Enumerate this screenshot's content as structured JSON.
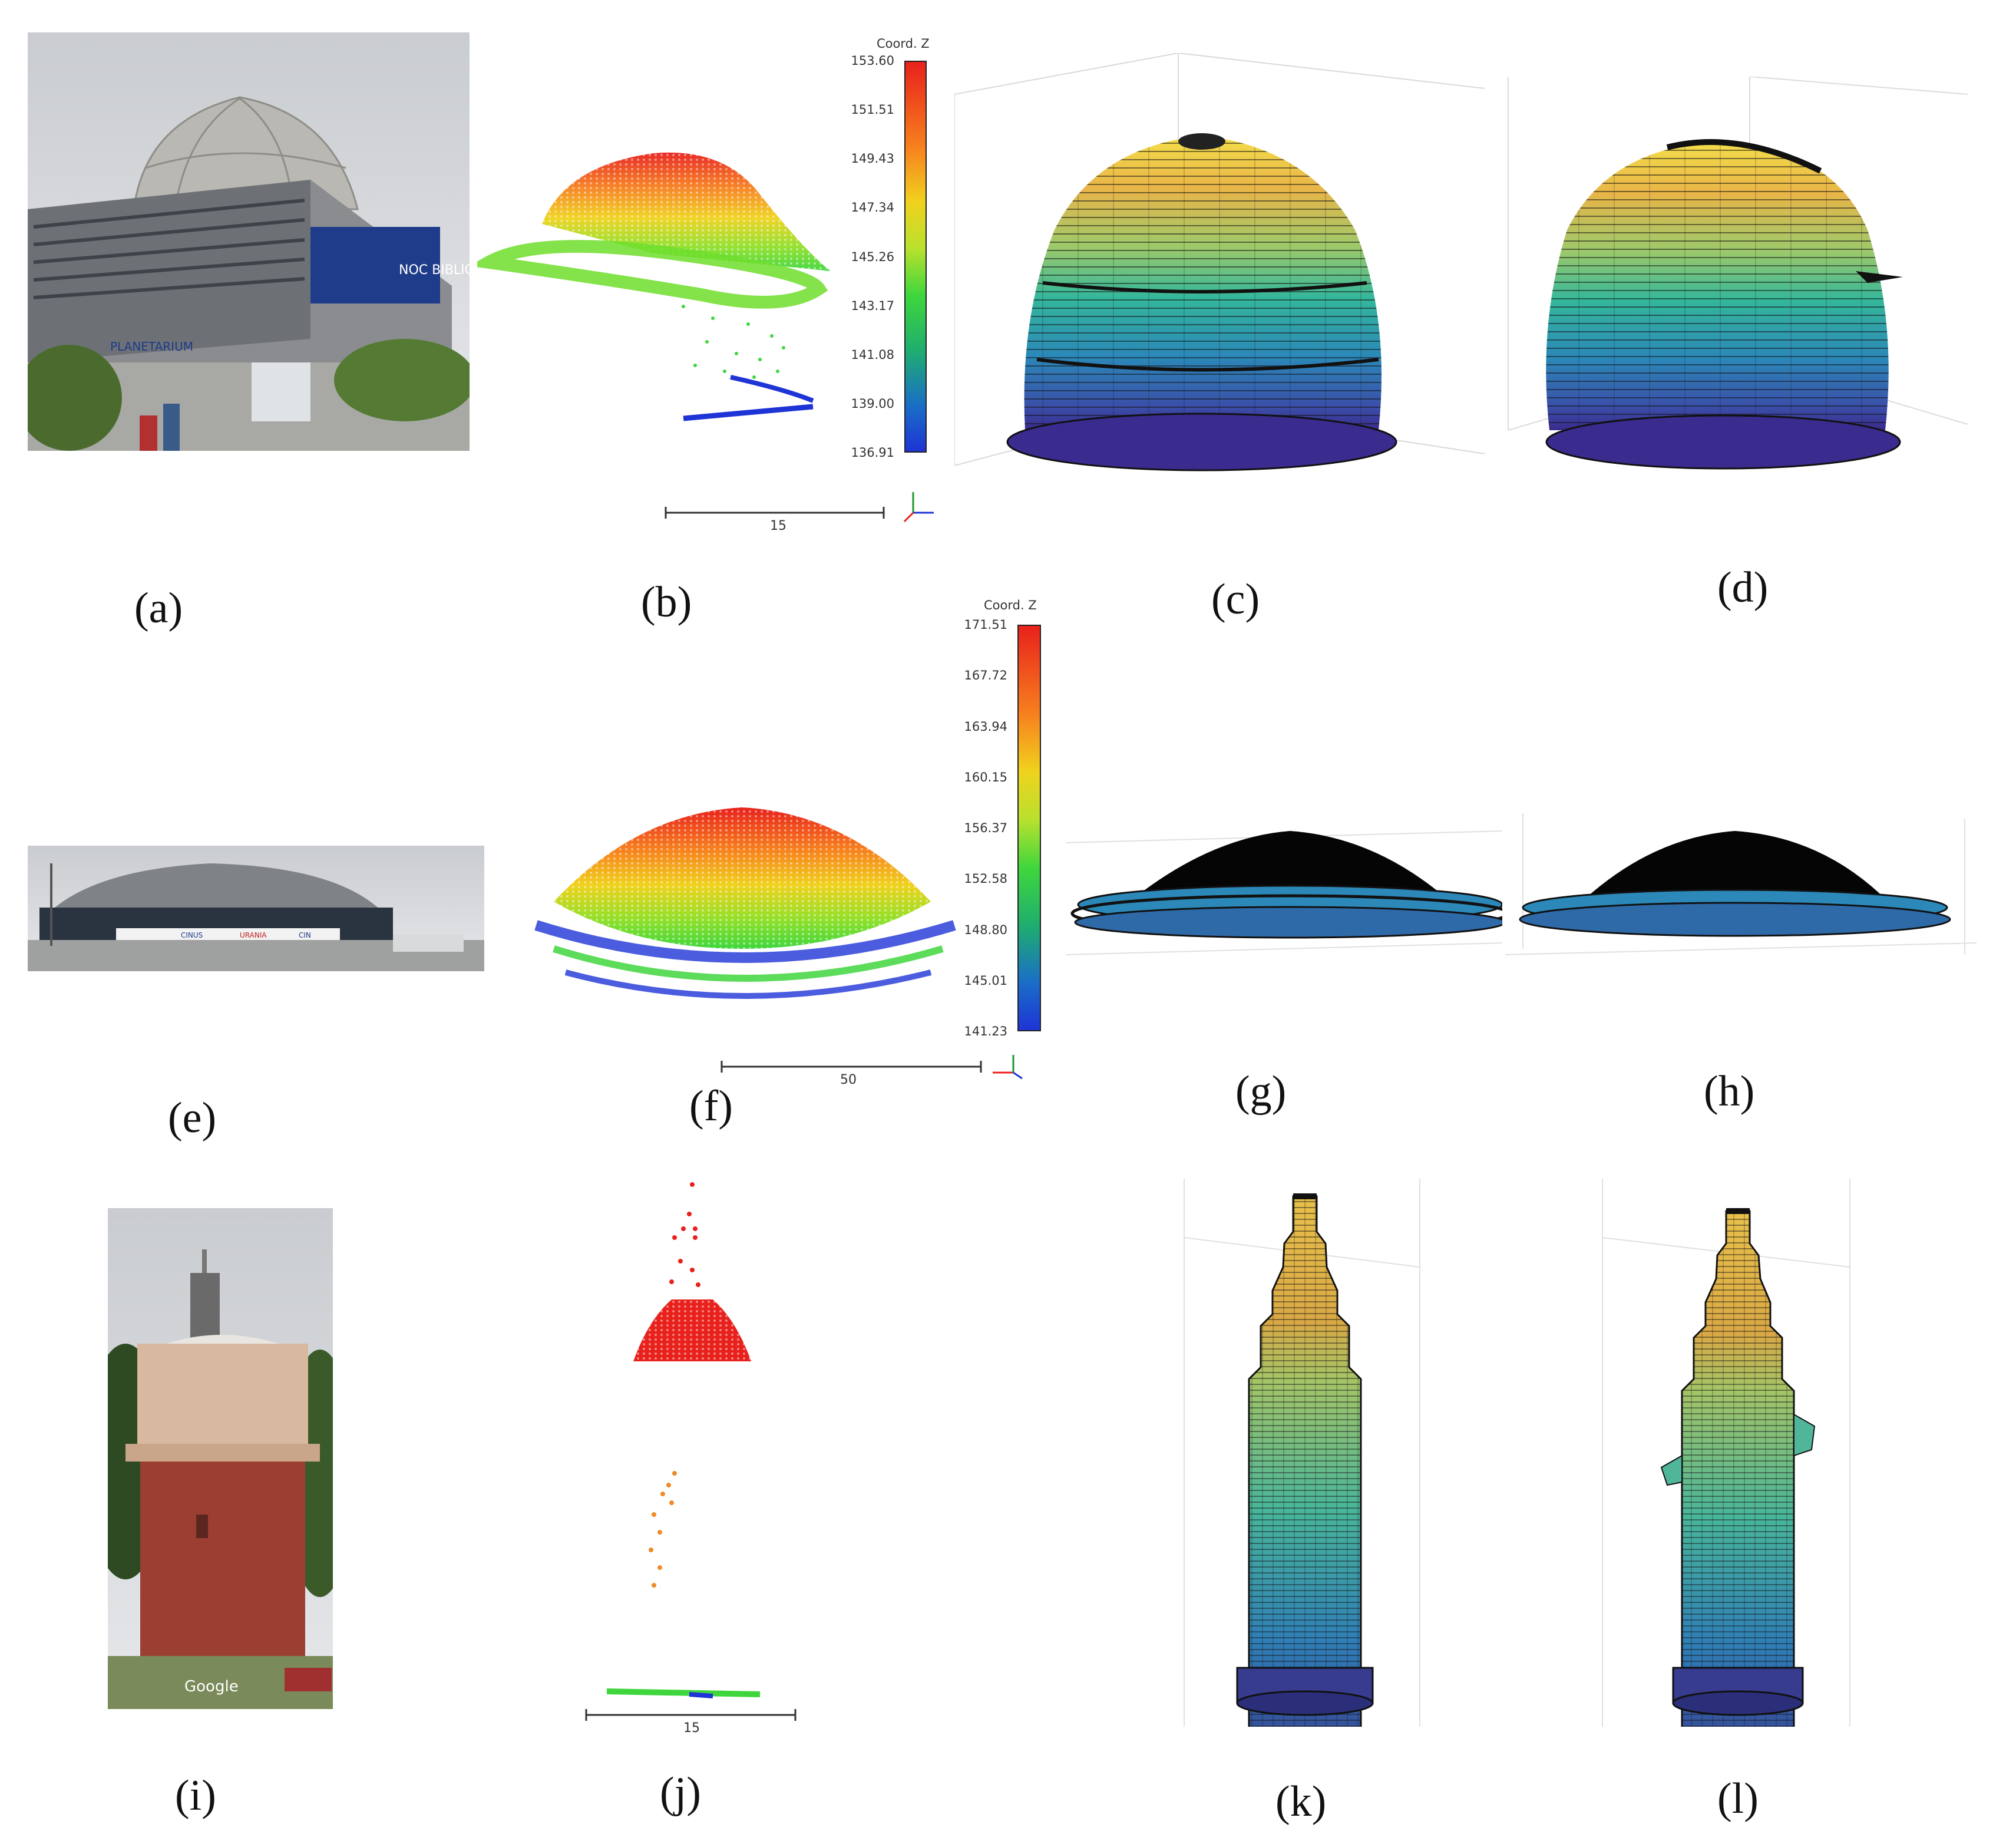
{
  "panels": {
    "a": "(a)",
    "b": "(b)",
    "c": "(c)",
    "d": "(d)",
    "e": "(e)",
    "f": "(f)",
    "g": "(g)",
    "h": "(h)",
    "i": "(i)",
    "j": "(j)",
    "k": "(k)",
    "l": "(l)"
  },
  "colorbar_b": {
    "title": "Coord. Z",
    "ticks": [
      "153.60",
      "151.51",
      "149.43",
      "147.34",
      "145.26",
      "143.17",
      "141.08",
      "139.00",
      "136.91"
    ]
  },
  "colorbar_f": {
    "title": "Coord. Z",
    "ticks": [
      "171.51",
      "167.72",
      "163.94",
      "160.15",
      "156.37",
      "152.58",
      "148.80",
      "145.01",
      "141.23"
    ]
  },
  "scalebars": {
    "b": "15",
    "f": "50",
    "j": "15"
  },
  "photo_texts": {
    "planetarium_sign": "PLANETARIUM",
    "banner_text": "NOC BIBLIOTEK",
    "hall_sign_1": "CINUS",
    "hall_sign_2": "URANIA",
    "hall_sign_3": "CIN",
    "watermark": "Google"
  },
  "colors": {
    "point_red": "#e8211c",
    "point_green": "#3fd63d",
    "point_blue": "#1e34d6",
    "mesh_yellow": "#f2d048",
    "mesh_teal": "#2bb0a0",
    "mesh_indigo": "#3a2b8e"
  }
}
